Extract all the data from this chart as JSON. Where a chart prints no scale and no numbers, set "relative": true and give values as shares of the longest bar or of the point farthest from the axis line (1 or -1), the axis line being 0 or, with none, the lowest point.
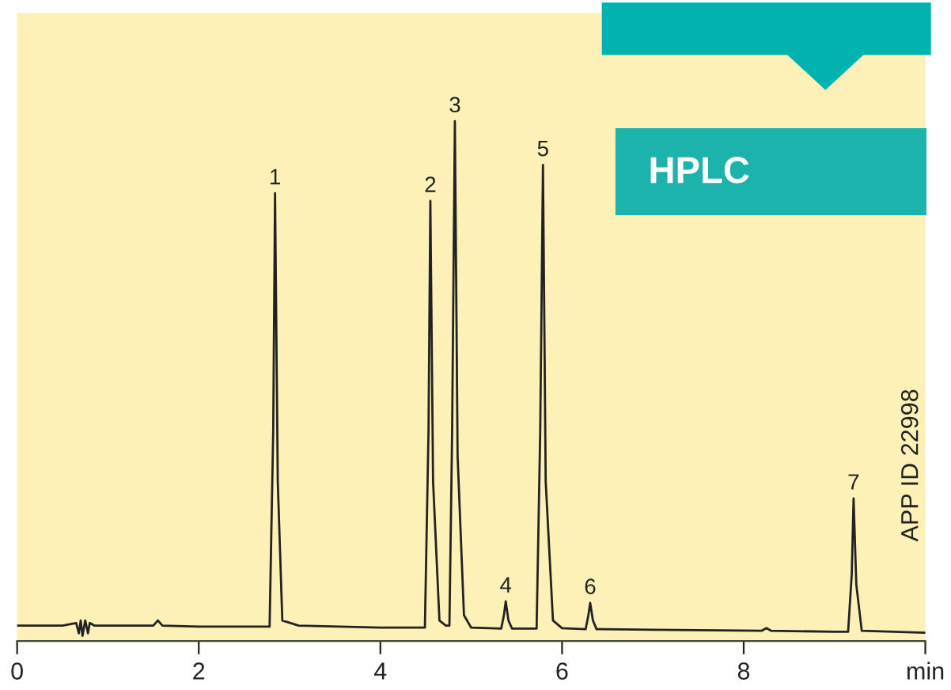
{
  "chart_data": {
    "type": "line",
    "relative": true,
    "color": "#222222",
    "xlim": [
      0,
      10
    ],
    "xticks": [
      0,
      2,
      4,
      6,
      8,
      {
        "value": 10,
        "label": "min"
      }
    ],
    "x": [
      0,
      0.5,
      0.65,
      0.68,
      0.7,
      0.72,
      0.75,
      0.78,
      0.8,
      0.85,
      1.0,
      1.5,
      1.55,
      1.6,
      2.0,
      2.78,
      2.82,
      2.84,
      2.87,
      2.92,
      3.1,
      4.0,
      4.49,
      4.53,
      4.55,
      4.58,
      4.65,
      4.72,
      4.76,
      4.79,
      4.82,
      4.85,
      4.92,
      5.0,
      5.33,
      5.36,
      5.38,
      5.41,
      5.45,
      5.72,
      5.76,
      5.79,
      5.82,
      5.9,
      6.0,
      6.26,
      6.29,
      6.31,
      6.34,
      6.38,
      7.0,
      8.2,
      8.25,
      8.3,
      9.0,
      9.15,
      9.19,
      9.21,
      9.24,
      9.3,
      10.0
    ],
    "values": [
      0.02,
      0.02,
      0.025,
      0.005,
      0.03,
      0.0,
      0.03,
      0.005,
      0.025,
      0.02,
      0.02,
      0.02,
      0.03,
      0.02,
      0.018,
      0.018,
      0.4,
      0.86,
      0.3,
      0.03,
      0.02,
      0.016,
      0.016,
      0.4,
      0.845,
      0.3,
      0.03,
      0.02,
      0.02,
      0.4,
      1.0,
      0.35,
      0.04,
      0.016,
      0.014,
      0.04,
      0.067,
      0.03,
      0.014,
      0.014,
      0.4,
      0.915,
      0.3,
      0.03,
      0.015,
      0.013,
      0.04,
      0.064,
      0.03,
      0.013,
      0.012,
      0.01,
      0.015,
      0.01,
      0.008,
      0.008,
      0.12,
      0.267,
      0.1,
      0.01,
      0.006
    ],
    "grid": false,
    "legend": false,
    "annotations": [
      {
        "text": "1",
        "x": 2.84,
        "y": 0.86
      },
      {
        "text": "2",
        "x": 4.55,
        "y": 0.845
      },
      {
        "text": "3",
        "x": 4.82,
        "y": 1.0
      },
      {
        "text": "4",
        "x": 5.38,
        "y": 0.067
      },
      {
        "text": "5",
        "x": 5.79,
        "y": 0.915
      },
      {
        "text": "6",
        "x": 6.31,
        "y": 0.064
      },
      {
        "text": "7",
        "x": 9.21,
        "y": 0.267
      },
      "HPLC",
      "APP ID 22998"
    ]
  }
}
